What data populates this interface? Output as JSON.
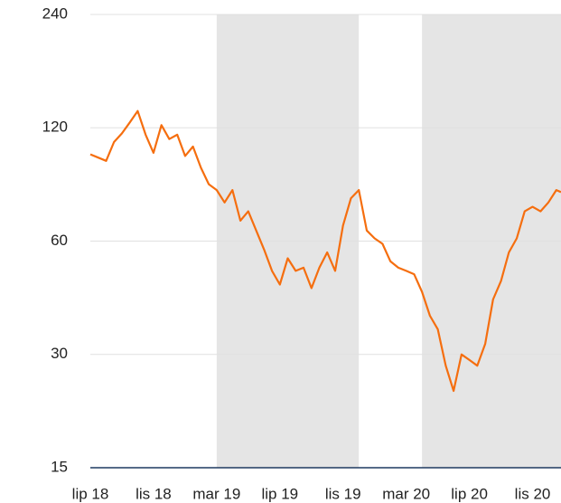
{
  "chart_data": {
    "type": "line",
    "log_scale_y": true,
    "grid": true,
    "band_color": "#e5e5e5",
    "bands": [
      [
        8,
        17
      ],
      [
        21,
        29.8
      ]
    ],
    "xlim": [
      0,
      29.8
    ],
    "xticks": [
      {
        "value": 0,
        "label": "lip 18"
      },
      {
        "value": 4,
        "label": "lis 18"
      },
      {
        "value": 8,
        "label": "mar 19"
      },
      {
        "value": 12,
        "label": "lip 19"
      },
      {
        "value": 16,
        "label": "lis 19"
      },
      {
        "value": 20,
        "label": "mar 20"
      },
      {
        "value": 24,
        "label": "lip 20"
      },
      {
        "value": 28,
        "label": "lis 20"
      }
    ],
    "ylim": [
      15,
      240
    ],
    "yticks": [
      15,
      30,
      60,
      120,
      240
    ],
    "x": [
      0,
      0.5,
      1,
      1.5,
      2,
      2.5,
      3,
      3.5,
      4,
      4.5,
      5,
      5.5,
      6,
      6.5,
      7,
      7.5,
      8,
      8.5,
      9,
      9.5,
      10,
      10.5,
      11,
      11.5,
      12,
      12.5,
      13,
      13.5,
      14,
      14.5,
      15,
      15.5,
      16,
      16.5,
      17,
      17.5,
      18,
      18.5,
      19,
      19.5,
      20,
      20.5,
      21,
      21.5,
      22,
      22.5,
      23,
      23.5,
      24,
      24.5,
      25,
      25.5,
      26,
      26.5,
      27,
      27.5,
      28,
      28.5,
      29,
      29.5,
      29.8
    ],
    "series": [
      {
        "color": "#f56e0f",
        "values": [
          102,
          100,
          98,
          110,
          116,
          124,
          133,
          115,
          103,
          122,
          112,
          115,
          101,
          107,
          94,
          85,
          82,
          76,
          82,
          68,
          72,
          64,
          57,
          50,
          46,
          54,
          50,
          51,
          45,
          51,
          56,
          50,
          66,
          78,
          82,
          64,
          61,
          59,
          53,
          51,
          50,
          49,
          44,
          38,
          35,
          28,
          24,
          30,
          29,
          28,
          32,
          42,
          47,
          56,
          61,
          72,
          74,
          72,
          76,
          82,
          81
        ]
      }
    ]
  }
}
